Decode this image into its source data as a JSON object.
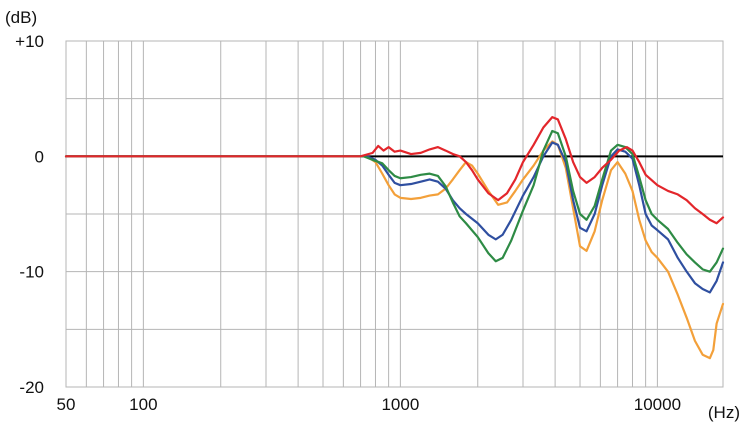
{
  "chart_data": {
    "type": "line",
    "title": "",
    "xlabel": "(Hz)",
    "ylabel": "(dB)",
    "x_scale": "log",
    "xlim": [
      50,
      18000
    ],
    "ylim": [
      -20,
      10
    ],
    "x_tick_labels": [
      {
        "value": 50,
        "label": "50"
      },
      {
        "value": 100,
        "label": "100"
      },
      {
        "value": 1000,
        "label": "1000"
      },
      {
        "value": 10000,
        "label": "10000"
      }
    ],
    "y_tick_labels": [
      {
        "value": 10,
        "label": "+10"
      },
      {
        "value": 0,
        "label": "0"
      },
      {
        "value": -10,
        "label": "-10"
      },
      {
        "value": -20,
        "label": "-20"
      }
    ],
    "grid": true,
    "reference_line": {
      "value": 0,
      "color": "#000000"
    },
    "colors": {
      "grid": "#b5b5b5",
      "reference": "#000000",
      "red": "#e3262b",
      "green": "#2e8b45",
      "blue": "#2f4fa0",
      "orange": "#f3a03a"
    },
    "series": [
      {
        "color_key": "red",
        "points": [
          [
            50,
            0
          ],
          [
            700,
            0
          ],
          [
            780,
            0.3
          ],
          [
            820,
            0.9
          ],
          [
            860,
            0.5
          ],
          [
            900,
            0.8
          ],
          [
            950,
            0.4
          ],
          [
            1000,
            0.5
          ],
          [
            1100,
            0.2
          ],
          [
            1200,
            0.3
          ],
          [
            1300,
            0.6
          ],
          [
            1400,
            0.8
          ],
          [
            1500,
            0.5
          ],
          [
            1600,
            0.2
          ],
          [
            1700,
            0
          ],
          [
            1800,
            -0.5
          ],
          [
            1900,
            -1.2
          ],
          [
            2000,
            -2
          ],
          [
            2200,
            -3.2
          ],
          [
            2400,
            -3.8
          ],
          [
            2600,
            -3.2
          ],
          [
            2800,
            -2
          ],
          [
            3000,
            -0.5
          ],
          [
            3300,
            1
          ],
          [
            3600,
            2.5
          ],
          [
            3900,
            3.4
          ],
          [
            4100,
            3.2
          ],
          [
            4400,
            1.5
          ],
          [
            4700,
            -0.5
          ],
          [
            5000,
            -1.8
          ],
          [
            5300,
            -2.3
          ],
          [
            5700,
            -1.8
          ],
          [
            6100,
            -1
          ],
          [
            6600,
            -0.3
          ],
          [
            7100,
            0.5
          ],
          [
            7600,
            0.8
          ],
          [
            8000,
            0.5
          ],
          [
            8500,
            -0.5
          ],
          [
            9000,
            -1.6
          ],
          [
            10000,
            -2.5
          ],
          [
            11000,
            -3
          ],
          [
            12000,
            -3.3
          ],
          [
            13000,
            -3.8
          ],
          [
            14000,
            -4.5
          ],
          [
            15000,
            -5
          ],
          [
            16000,
            -5.5
          ],
          [
            17000,
            -5.8
          ],
          [
            18000,
            -5.3
          ]
        ]
      },
      {
        "color_key": "green",
        "points": [
          [
            50,
            0
          ],
          [
            720,
            0
          ],
          [
            800,
            -0.4
          ],
          [
            850,
            -0.6
          ],
          [
            900,
            -1.2
          ],
          [
            950,
            -1.7
          ],
          [
            1000,
            -1.9
          ],
          [
            1100,
            -1.8
          ],
          [
            1200,
            -1.6
          ],
          [
            1300,
            -1.5
          ],
          [
            1400,
            -1.7
          ],
          [
            1500,
            -2.6
          ],
          [
            1600,
            -4
          ],
          [
            1700,
            -5.2
          ],
          [
            1800,
            -5.8
          ],
          [
            2000,
            -7
          ],
          [
            2200,
            -8.4
          ],
          [
            2350,
            -9.1
          ],
          [
            2500,
            -8.8
          ],
          [
            2700,
            -7.3
          ],
          [
            3000,
            -4.7
          ],
          [
            3300,
            -2.5
          ],
          [
            3600,
            0.5
          ],
          [
            3900,
            2.2
          ],
          [
            4100,
            2
          ],
          [
            4400,
            0
          ],
          [
            4700,
            -3
          ],
          [
            5000,
            -5
          ],
          [
            5300,
            -5.5
          ],
          [
            5700,
            -4.3
          ],
          [
            6100,
            -2
          ],
          [
            6600,
            0.5
          ],
          [
            7000,
            1
          ],
          [
            7500,
            0.8
          ],
          [
            8000,
            0.2
          ],
          [
            8500,
            -1.8
          ],
          [
            9000,
            -3.8
          ],
          [
            9500,
            -5
          ],
          [
            10000,
            -5.5
          ],
          [
            11000,
            -6.3
          ],
          [
            12000,
            -7.5
          ],
          [
            13000,
            -8.5
          ],
          [
            14000,
            -9.2
          ],
          [
            15000,
            -9.8
          ],
          [
            16000,
            -10
          ],
          [
            17000,
            -9.2
          ],
          [
            18000,
            -8
          ]
        ]
      },
      {
        "color_key": "blue",
        "points": [
          [
            50,
            0
          ],
          [
            740,
            0
          ],
          [
            800,
            -0.3
          ],
          [
            850,
            -0.8
          ],
          [
            900,
            -1.6
          ],
          [
            950,
            -2.3
          ],
          [
            1000,
            -2.5
          ],
          [
            1100,
            -2.4
          ],
          [
            1200,
            -2.2
          ],
          [
            1300,
            -2
          ],
          [
            1400,
            -2.2
          ],
          [
            1500,
            -2.8
          ],
          [
            1600,
            -3.8
          ],
          [
            1700,
            -4.5
          ],
          [
            1800,
            -5
          ],
          [
            2000,
            -5.8
          ],
          [
            2200,
            -6.8
          ],
          [
            2350,
            -7.2
          ],
          [
            2500,
            -6.8
          ],
          [
            2700,
            -5.5
          ],
          [
            3000,
            -3.4
          ],
          [
            3300,
            -1.8
          ],
          [
            3600,
            0
          ],
          [
            3900,
            1.2
          ],
          [
            4100,
            1
          ],
          [
            4400,
            -0.5
          ],
          [
            4700,
            -3.8
          ],
          [
            5000,
            -6.2
          ],
          [
            5300,
            -6.5
          ],
          [
            5700,
            -5
          ],
          [
            6100,
            -2.5
          ],
          [
            6600,
            0
          ],
          [
            7000,
            0.6
          ],
          [
            7500,
            0.4
          ],
          [
            8000,
            -0.2
          ],
          [
            8500,
            -2.5
          ],
          [
            9000,
            -5
          ],
          [
            9500,
            -6
          ],
          [
            10000,
            -6.4
          ],
          [
            11000,
            -7.2
          ],
          [
            12000,
            -8.8
          ],
          [
            13000,
            -10
          ],
          [
            14000,
            -11
          ],
          [
            15000,
            -11.5
          ],
          [
            16000,
            -11.8
          ],
          [
            17000,
            -10.8
          ],
          [
            18000,
            -9.2
          ]
        ]
      },
      {
        "color_key": "orange",
        "points": [
          [
            50,
            0
          ],
          [
            740,
            0
          ],
          [
            800,
            -0.5
          ],
          [
            850,
            -1.5
          ],
          [
            900,
            -2.5
          ],
          [
            950,
            -3.3
          ],
          [
            1000,
            -3.6
          ],
          [
            1100,
            -3.7
          ],
          [
            1200,
            -3.6
          ],
          [
            1300,
            -3.4
          ],
          [
            1400,
            -3.3
          ],
          [
            1500,
            -2.8
          ],
          [
            1600,
            -2
          ],
          [
            1700,
            -1.2
          ],
          [
            1800,
            -0.5
          ],
          [
            1900,
            -0.8
          ],
          [
            2000,
            -1.5
          ],
          [
            2200,
            -3
          ],
          [
            2400,
            -4.2
          ],
          [
            2600,
            -4
          ],
          [
            2800,
            -3
          ],
          [
            3000,
            -2
          ],
          [
            3300,
            -0.8
          ],
          [
            3600,
            0.5
          ],
          [
            3900,
            1.3
          ],
          [
            4100,
            1
          ],
          [
            4400,
            -1
          ],
          [
            4700,
            -4.5
          ],
          [
            5000,
            -7.8
          ],
          [
            5300,
            -8.2
          ],
          [
            5700,
            -6.5
          ],
          [
            6100,
            -3.8
          ],
          [
            6600,
            -1.2
          ],
          [
            7000,
            -0.5
          ],
          [
            7500,
            -1.5
          ],
          [
            8000,
            -3
          ],
          [
            8500,
            -5.5
          ],
          [
            9000,
            -7.3
          ],
          [
            9500,
            -8.3
          ],
          [
            10000,
            -8.8
          ],
          [
            11000,
            -10
          ],
          [
            12000,
            -12
          ],
          [
            13000,
            -14
          ],
          [
            14000,
            -16
          ],
          [
            15000,
            -17.2
          ],
          [
            16000,
            -17.5
          ],
          [
            16500,
            -16.8
          ],
          [
            17000,
            -14.5
          ],
          [
            18000,
            -12.8
          ]
        ]
      }
    ]
  }
}
